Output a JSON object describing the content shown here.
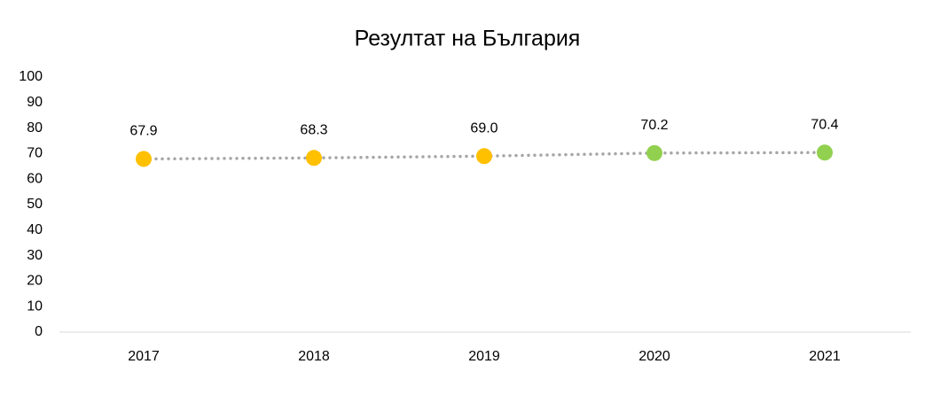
{
  "chart_data": {
    "type": "line",
    "title": "Резултат на България",
    "categories": [
      "2017",
      "2018",
      "2019",
      "2020",
      "2021"
    ],
    "values": [
      67.9,
      68.3,
      69.0,
      70.2,
      70.4
    ],
    "value_labels": [
      "67.9",
      "68.3",
      "69.0",
      "70.2",
      "70.4"
    ],
    "line_color": "#a6a6a6",
    "point_colors": [
      "#ffc000",
      "#ffc000",
      "#ffc000",
      "#92d050",
      "#92d050"
    ],
    "ylim": [
      0,
      100
    ],
    "yticks": [
      0,
      10,
      20,
      30,
      40,
      50,
      60,
      70,
      80,
      90,
      100
    ],
    "grid": false
  }
}
